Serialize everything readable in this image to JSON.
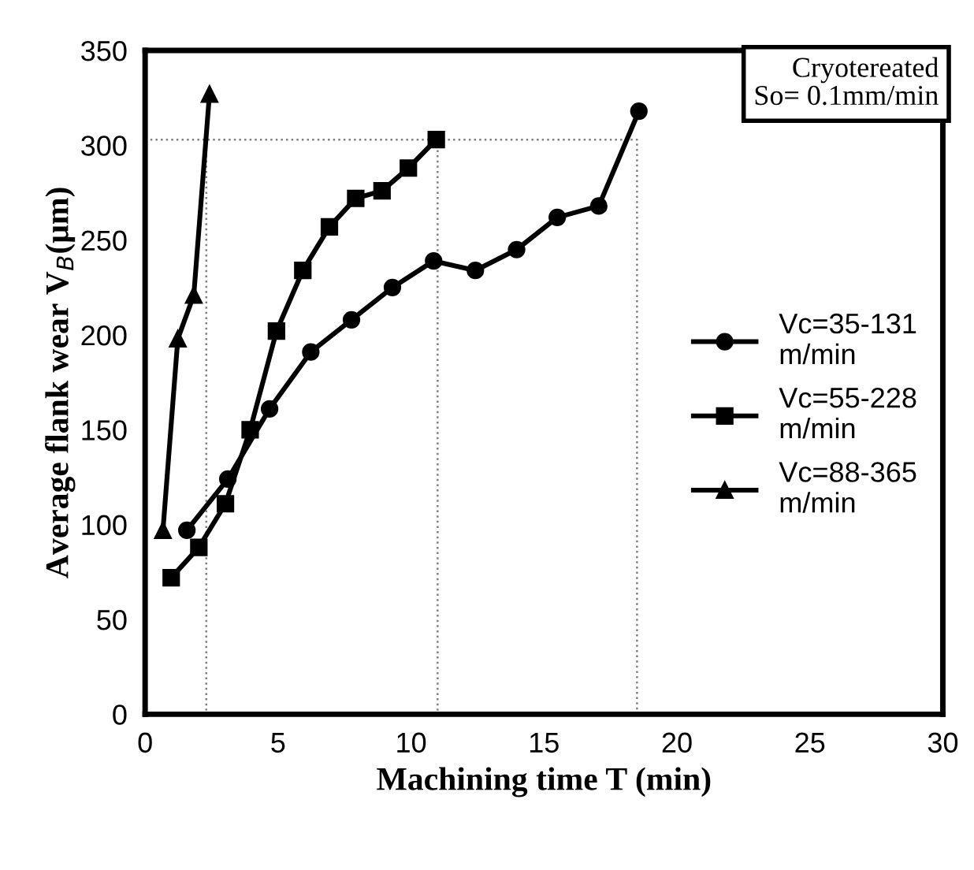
{
  "chart_data": {
    "type": "line",
    "xlabel": "Machining time T (min)",
    "ylabel": "Average flank wear V$_{B}$(μm)",
    "annotations": [
      "Cryotereated\nSo= 0.1mm/min"
    ],
    "xlim": [
      0,
      30
    ],
    "xticks": [
      0,
      5,
      10,
      15,
      20,
      25,
      30
    ],
    "ylim": [
      0,
      350
    ],
    "yticks": [
      0,
      50,
      100,
      150,
      200,
      250,
      300,
      350
    ],
    "grid": false,
    "legend": "right",
    "series": [
      {
        "name": "Vc=35-131\nm/min",
        "color": "#000000",
        "marker": "circle",
        "x": [
          1.57,
          3.11,
          4.68,
          6.23,
          7.76,
          9.3,
          10.85,
          12.42,
          13.97,
          15.5,
          17.06,
          18.57
        ],
        "values": [
          97,
          124,
          161,
          191,
          208,
          225,
          239,
          234,
          245,
          262,
          268,
          318
        ]
      },
      {
        "name": "Vc=55-228\nm/min",
        "color": "#000000",
        "marker": "square",
        "x": [
          0.98,
          2.02,
          3.02,
          3.95,
          4.94,
          5.93,
          6.93,
          7.92,
          8.91,
          9.9,
          10.95
        ],
        "values": [
          72,
          88,
          111,
          150,
          202,
          234,
          257,
          272,
          276,
          288,
          303
        ]
      },
      {
        "name": "Vc=88-365\nm/min",
        "color": "#000000",
        "marker": "triangle",
        "x": [
          0.67,
          1.23,
          1.83,
          2.42
        ],
        "values": [
          97,
          198,
          221,
          327
        ]
      },
      {
        "color": "#808080",
        "marker": "none",
        "line_style": "dotted",
        "x": [
          0,
          18.5,
          18.5
        ],
        "values": [
          303,
          303,
          0
        ]
      },
      {
        "color": "#808080",
        "marker": "none",
        "line_style": "dotted",
        "x": [
          2.3,
          2.3
        ],
        "values": [
          303,
          0
        ]
      },
      {
        "color": "#808080",
        "marker": "none",
        "line_style": "dotted",
        "x": [
          11,
          11
        ],
        "values": [
          303,
          0
        ]
      }
    ]
  }
}
